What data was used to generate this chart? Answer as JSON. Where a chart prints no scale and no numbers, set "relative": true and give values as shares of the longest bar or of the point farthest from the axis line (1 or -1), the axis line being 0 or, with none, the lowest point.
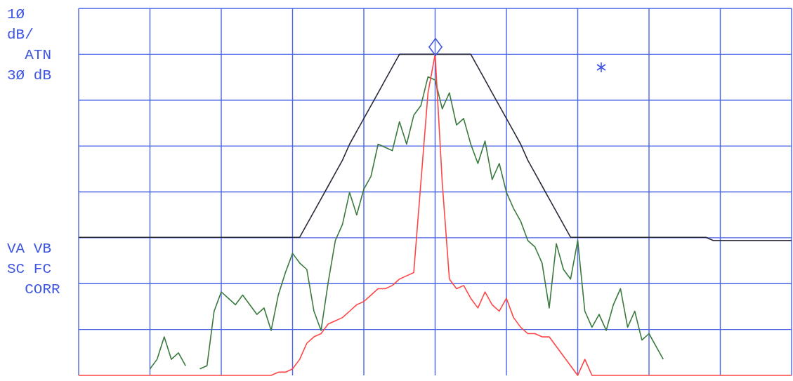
{
  "chart_data": {
    "type": "line",
    "relative": true,
    "grid": true,
    "legend": false,
    "marker": "none",
    "line_style": "solid",
    "categories": [
      null,
      null,
      null,
      null,
      null,
      null,
      null,
      null,
      null,
      null,
      null,
      null,
      null,
      null,
      null,
      null,
      null,
      null,
      null,
      null,
      null,
      null,
      null,
      null,
      null,
      null,
      null,
      null,
      null,
      null,
      null,
      null,
      null,
      null,
      null,
      null,
      null,
      null,
      null,
      null,
      null,
      null,
      null,
      null,
      null,
      null,
      null,
      null,
      null,
      null,
      null,
      null,
      null,
      null,
      null,
      null,
      null,
      null,
      null,
      null,
      null,
      null,
      null,
      null,
      null,
      null,
      null,
      null,
      null,
      null,
      null,
      null,
      null,
      null,
      null,
      null,
      null,
      null,
      null,
      null,
      null,
      null,
      null,
      null,
      null,
      null,
      null,
      null,
      null,
      null,
      null,
      null,
      null,
      null,
      null,
      null,
      null,
      null,
      null,
      null,
      null
    ],
    "annotations": [
      "1Ø\ndB/\n  ATN\n3Ø dB",
      "VA VB\nSC FC\n  CORR"
    ],
    "series": [
      {
        "color": "#2b2b3b",
        "values": [
          0.43,
          0.43,
          0.43,
          0.43,
          0.43,
          0.43,
          0.43,
          0.43,
          0.43,
          0.43,
          0.43,
          0.43,
          0.43,
          0.43,
          0.43,
          0.43,
          0.43,
          0.43,
          0.43,
          0.43,
          0.43,
          0.43,
          0.43,
          0.43,
          0.43,
          0.43,
          0.43,
          0.43,
          0.43,
          0.43,
          0.43,
          0.43,
          0.47,
          0.51,
          0.55,
          0.59,
          0.63,
          0.67,
          0.72,
          0.76,
          0.8,
          0.84,
          0.88,
          0.92,
          0.96,
          1,
          1,
          1,
          1,
          1,
          1,
          1,
          1,
          1,
          1,
          1,
          0.96,
          0.92,
          0.88,
          0.84,
          0.8,
          0.76,
          0.72,
          0.67,
          0.63,
          0.59,
          0.55,
          0.51,
          0.47,
          0.43,
          0.43,
          0.43,
          0.43,
          0.43,
          0.43,
          0.43,
          0.43,
          0.43,
          0.43,
          0.43,
          0.43,
          0.43,
          0.43,
          0.43,
          0.43,
          0.43,
          0.43,
          0.43,
          0.43,
          0.42,
          0.42,
          0.42,
          0.42,
          0.42,
          0.42,
          0.42,
          0.42,
          0.42,
          0.42,
          0.42,
          0.42
        ]
      },
      {
        "color": "#3a7a3e",
        "values": [
          null,
          null,
          null,
          null,
          null,
          null,
          null,
          null,
          null,
          null,
          0.02,
          0.05,
          0.12,
          0.05,
          0.07,
          0.03,
          null,
          0.02,
          0.03,
          0.2,
          0.26,
          0.24,
          0.22,
          0.25,
          0.22,
          0.19,
          0.21,
          0.14,
          0.25,
          0.32,
          0.38,
          0.35,
          0.33,
          0.2,
          0.14,
          0.29,
          0.42,
          0.47,
          0.57,
          0.5,
          0.58,
          0.62,
          0.72,
          0.71,
          0.7,
          0.79,
          0.72,
          0.81,
          0.84,
          0.93,
          0.92,
          0.83,
          0.88,
          0.78,
          0.8,
          0.72,
          0.66,
          0.73,
          0.61,
          0.66,
          0.57,
          0.52,
          0.48,
          0.42,
          0.4,
          0.35,
          0.21,
          0.41,
          0.33,
          0.3,
          0.42,
          0.2,
          0.15,
          0.19,
          0.14,
          0.22,
          0.27,
          0.15,
          0.2,
          0.11,
          0.13,
          0.09,
          0.05,
          null,
          null,
          null,
          null,
          null,
          null,
          null,
          null,
          null,
          null,
          null,
          null,
          null,
          null,
          null,
          null,
          null,
          null
        ]
      },
      {
        "color": "#ff4545",
        "values": [
          0,
          0,
          0,
          0,
          0,
          0,
          0,
          0,
          0,
          0,
          0,
          0,
          0,
          0,
          0,
          0,
          0,
          0,
          0,
          0,
          0,
          0,
          0,
          0,
          0,
          0,
          0,
          0,
          0.01,
          0.01,
          0.02,
          0.05,
          0.1,
          0.12,
          0.13,
          0.16,
          0.17,
          0.18,
          0.2,
          0.22,
          0.23,
          0.25,
          0.27,
          0.27,
          0.28,
          0.3,
          0.31,
          0.32,
          0.6,
          0.88,
          1,
          0.6,
          0.3,
          0.27,
          0.28,
          0.24,
          0.21,
          0.26,
          0.22,
          0.2,
          0.24,
          0.18,
          0.15,
          0.13,
          0.13,
          0.12,
          0.12,
          0.09,
          0.06,
          0.03,
          0,
          0.05,
          0,
          0,
          0,
          0,
          0,
          0,
          0,
          0,
          0,
          0,
          0,
          0,
          0,
          0,
          0,
          0,
          0,
          0,
          0,
          0,
          0,
          0,
          0,
          0,
          0,
          0,
          0,
          0,
          0
        ]
      }
    ]
  }
}
